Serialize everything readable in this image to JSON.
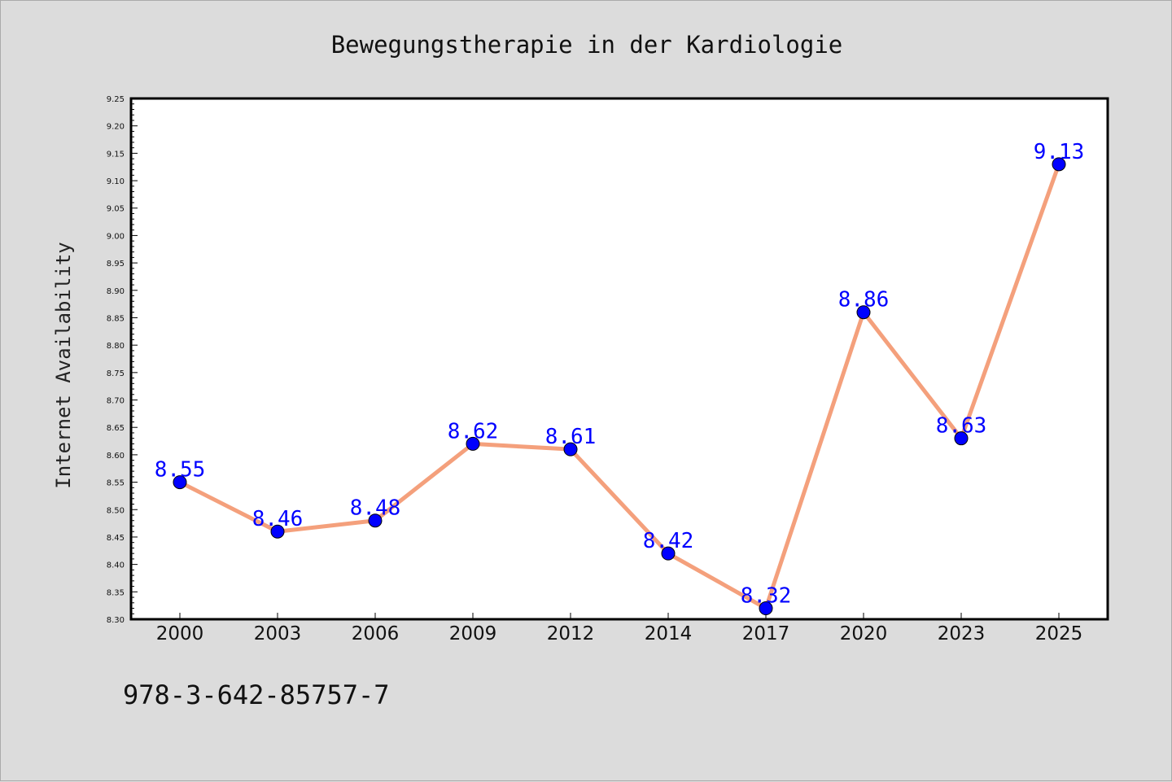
{
  "chart_data": {
    "type": "line",
    "title": "Bewegungstherapie in der Kardiologie",
    "xlabel": "",
    "ylabel": "Internet Availability",
    "categories": [
      "2000",
      "2003",
      "2006",
      "2009",
      "2012",
      "2014",
      "2017",
      "2020",
      "2023",
      "2025"
    ],
    "series": [
      {
        "values": [
          8.55,
          8.46,
          8.48,
          8.62,
          8.61,
          8.42,
          8.32,
          8.86,
          8.63,
          9.13
        ],
        "line_color": "#f4a07c",
        "marker_color": "#0000ff"
      }
    ],
    "data_labels": [
      "8.55",
      "8.46",
      "8.48",
      "8.62",
      "8.61",
      "8.42",
      "8.32",
      "8.86",
      "8.63",
      "9.13"
    ],
    "data_label_color": "#0000ff",
    "ylim": [
      8.3,
      9.25
    ],
    "yticks": [
      "8.30",
      "8.35",
      "8.40",
      "8.45",
      "8.50",
      "8.55",
      "8.60",
      "8.65",
      "8.70",
      "8.75",
      "8.80",
      "8.85",
      "8.90",
      "8.95",
      "9.00",
      "9.05",
      "9.10",
      "9.15",
      "9.20",
      "9.25"
    ],
    "grid": false,
    "legend": "none"
  },
  "footer_text": "978-3-642-85757-7",
  "colors": {
    "background": "#dcdcdc",
    "plot_background": "#ffffff",
    "axis": "#000000"
  }
}
